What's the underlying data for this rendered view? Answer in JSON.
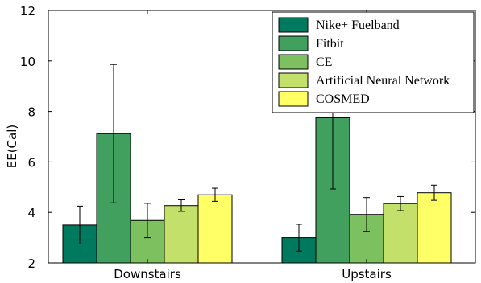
{
  "chart_data": {
    "type": "bar",
    "title": "",
    "xlabel": "",
    "ylabel": "EE(Cal)",
    "ylim": [
      2,
      12
    ],
    "yticks": [
      2,
      4,
      6,
      8,
      10,
      12
    ],
    "categories": [
      "Downstairs",
      "Upstairs"
    ],
    "grid": false,
    "legend_position": "top-right",
    "series": [
      {
        "name": "Nike+ Fuelband",
        "color": "#007a5e",
        "values": [
          3.5,
          3.0
        ],
        "error": [
          0.75,
          0.53
        ]
      },
      {
        "name": "Fitbit",
        "color": "#41a05e",
        "values": [
          7.12,
          7.75
        ],
        "error": [
          2.74,
          2.82
        ]
      },
      {
        "name": "CE",
        "color": "#7cc060",
        "values": [
          3.68,
          3.92
        ],
        "error": [
          0.68,
          0.67
        ]
      },
      {
        "name": "Artificial Neural Network",
        "color": "#c3e06a",
        "values": [
          4.27,
          4.35
        ],
        "error": [
          0.23,
          0.28
        ]
      },
      {
        "name": "COSMED",
        "color": "#ffff66",
        "values": [
          4.7,
          4.78
        ],
        "error": [
          0.26,
          0.3
        ]
      }
    ]
  }
}
